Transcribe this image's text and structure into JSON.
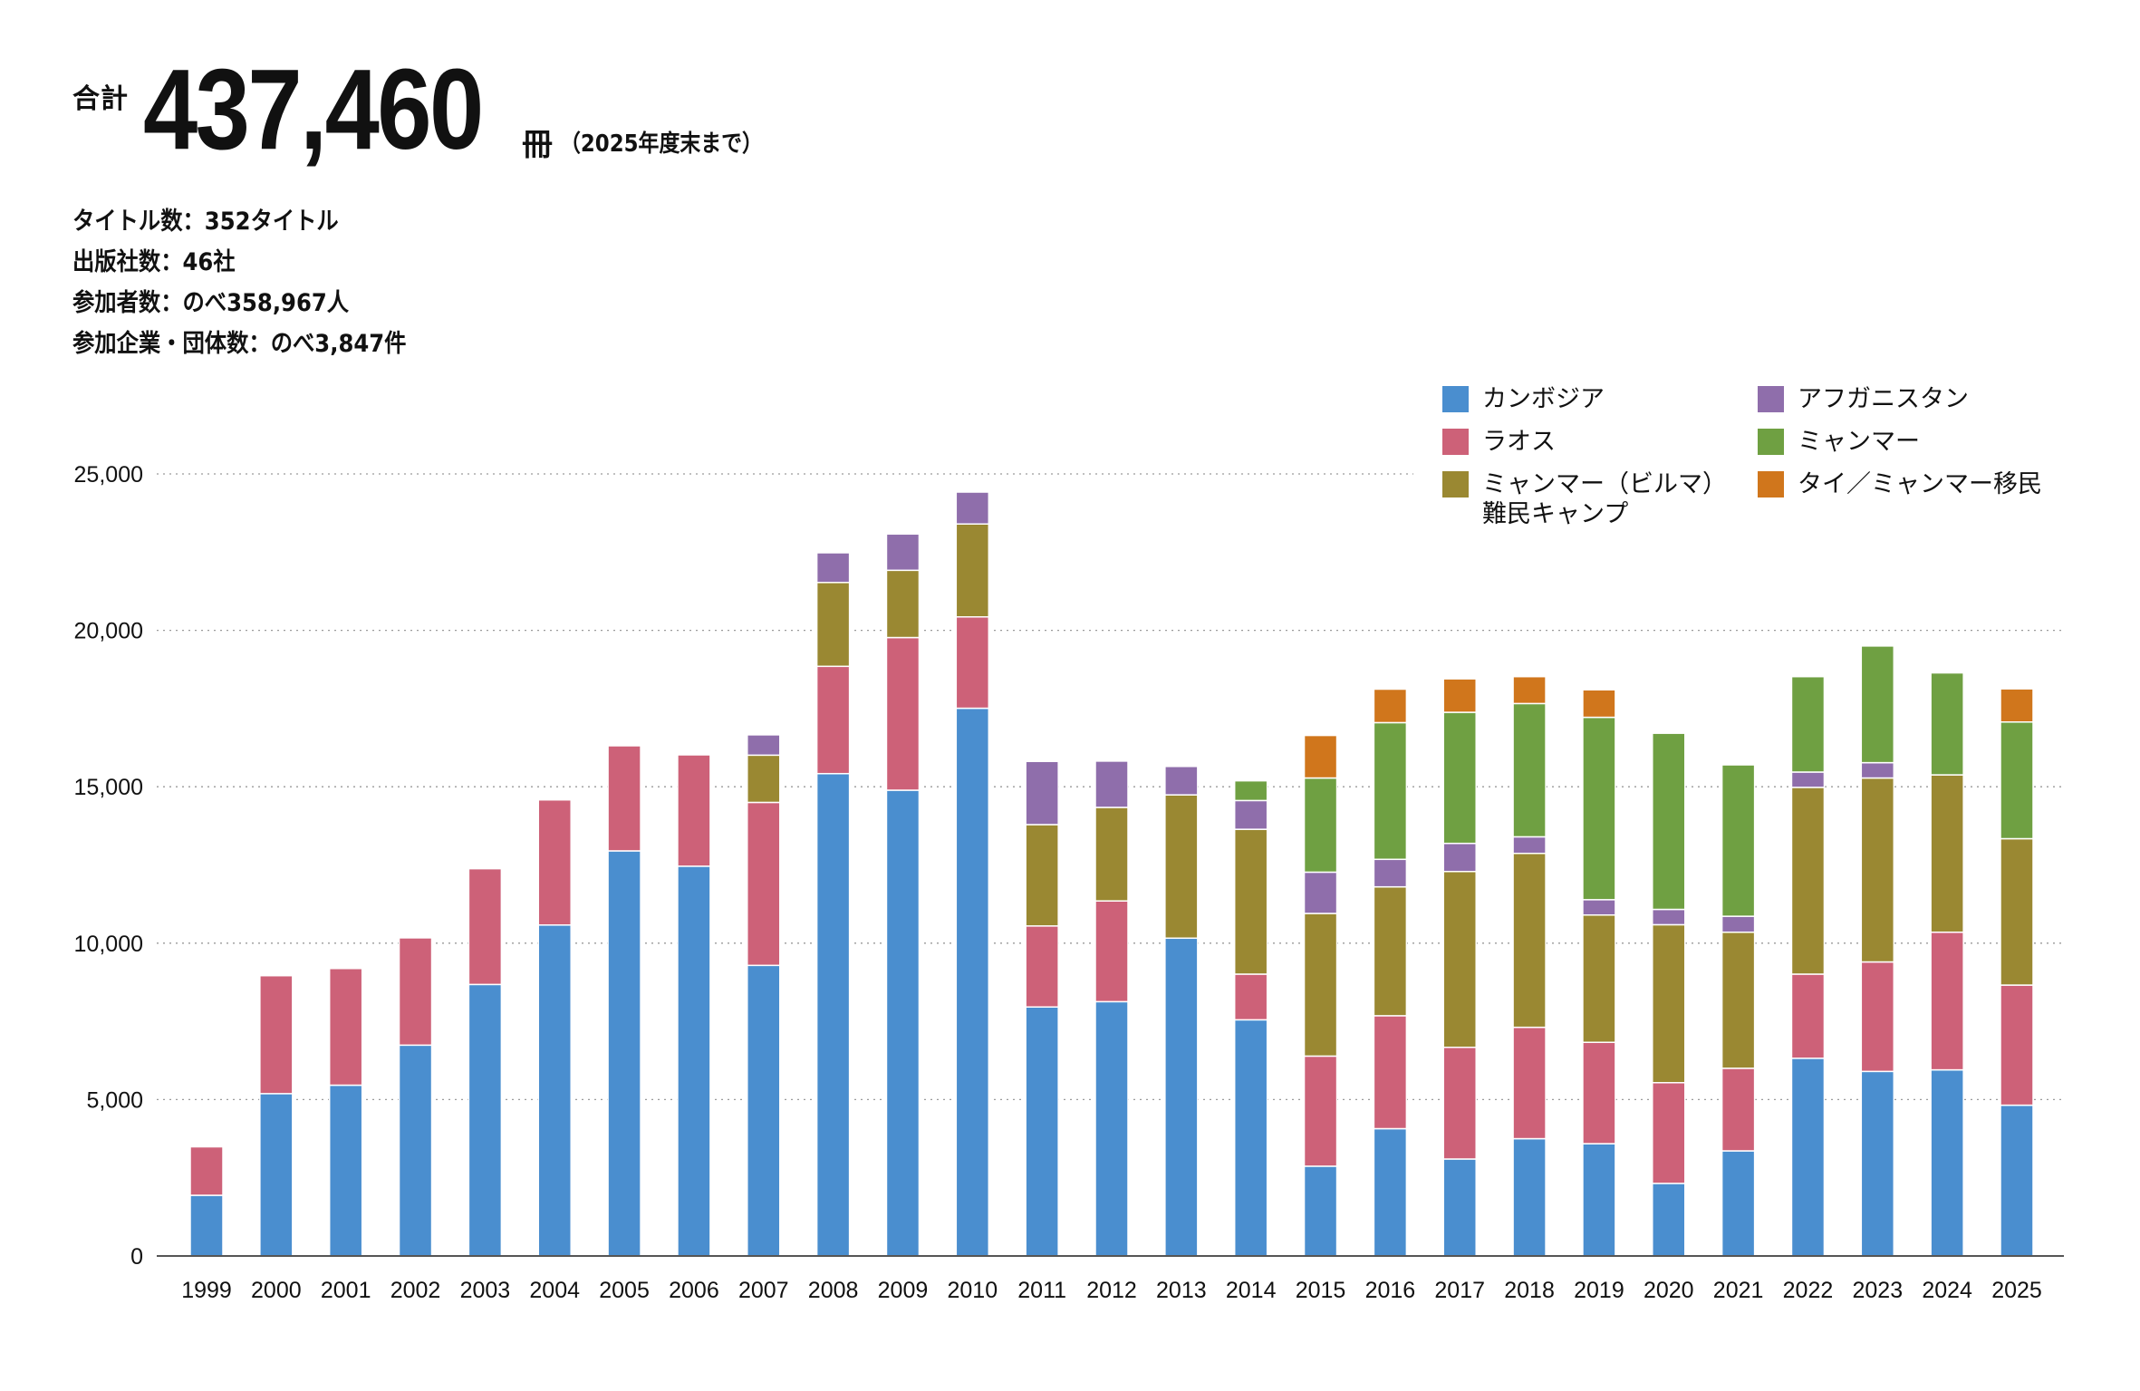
{
  "header": {
    "total_label": "合計",
    "total_value": "437,460",
    "total_unit": "冊",
    "total_note": "（2025年度末まで）",
    "stats": [
      "タイトル数：352タイトル",
      "出版社数：46社",
      "参加者数：のべ358,967人",
      "参加企業・団体数：のべ3,847件"
    ]
  },
  "chart_data": {
    "type": "bar",
    "stacked": true,
    "title": "",
    "xlabel": "",
    "ylabel": "",
    "ylim": [
      0,
      25000
    ],
    "yticks": [
      0,
      5000,
      10000,
      15000,
      20000,
      25000
    ],
    "ytick_labels": [
      "0",
      "5,000",
      "10,000",
      "15,000",
      "20,000",
      "25,000"
    ],
    "grid": "horizontal dotted",
    "legend_position": "top-right",
    "categories": [
      "1999",
      "2000",
      "2001",
      "2002",
      "2003",
      "2004",
      "2005",
      "2006",
      "2007",
      "2008",
      "2009",
      "2010",
      "2011",
      "2012",
      "2013",
      "2014",
      "2015",
      "2016",
      "2017",
      "2018",
      "2019",
      "2020",
      "2021",
      "2022",
      "2023",
      "2024",
      "2025"
    ],
    "series": [
      {
        "name": "カンボジア",
        "color": "#4a8ecf",
        "values": [
          1940,
          5190,
          5460,
          6740,
          8680,
          10580,
          12950,
          12460,
          9290,
          15420,
          14890,
          17510,
          7960,
          8130,
          10160,
          7550,
          2870,
          4070,
          3100,
          3750,
          3590,
          2320,
          3360,
          6320,
          5900,
          5950,
          4820
        ]
      },
      {
        "name": "ラオス",
        "color": "#cd6178",
        "values": [
          1550,
          3770,
          3730,
          3430,
          3700,
          4000,
          3360,
          3560,
          5210,
          3430,
          4880,
          2920,
          2590,
          3220,
          0,
          1460,
          3520,
          3610,
          3570,
          3560,
          3240,
          3220,
          2640,
          2690,
          3500,
          4400,
          3840
        ]
      },
      {
        "name": "ミャンマー（ビルマ）\n難民キャンプ",
        "color": "#9a8832",
        "values": [
          0,
          0,
          0,
          0,
          0,
          0,
          0,
          0,
          1510,
          2680,
          2150,
          2970,
          3240,
          2990,
          4580,
          4630,
          4560,
          4120,
          5620,
          5560,
          4070,
          5050,
          4350,
          5970,
          5880,
          5030,
          4680
        ]
      },
      {
        "name": "アフガニスタン",
        "color": "#8f6eab",
        "values": [
          0,
          0,
          0,
          0,
          0,
          0,
          0,
          0,
          650,
          950,
          1160,
          1020,
          2020,
          1480,
          910,
          920,
          1320,
          880,
          900,
          530,
          490,
          490,
          510,
          490,
          490,
          0,
          0
        ]
      },
      {
        "name": "ミャンマー",
        "color": "#6fa042",
        "values": [
          0,
          0,
          0,
          0,
          0,
          0,
          0,
          0,
          0,
          0,
          0,
          0,
          0,
          0,
          0,
          630,
          3010,
          4370,
          4190,
          4260,
          5830,
          5630,
          4840,
          3050,
          3730,
          3260,
          3730
        ]
      },
      {
        "name": "タイ／ミャンマー移民",
        "color": "#d0761c",
        "values": [
          0,
          0,
          0,
          0,
          0,
          0,
          0,
          0,
          0,
          0,
          0,
          0,
          0,
          0,
          0,
          0,
          1360,
          1070,
          1070,
          860,
          880,
          0,
          0,
          0,
          0,
          0,
          1060
        ]
      }
    ],
    "legend_order": [
      0,
      3,
      1,
      4,
      2,
      5
    ]
  }
}
